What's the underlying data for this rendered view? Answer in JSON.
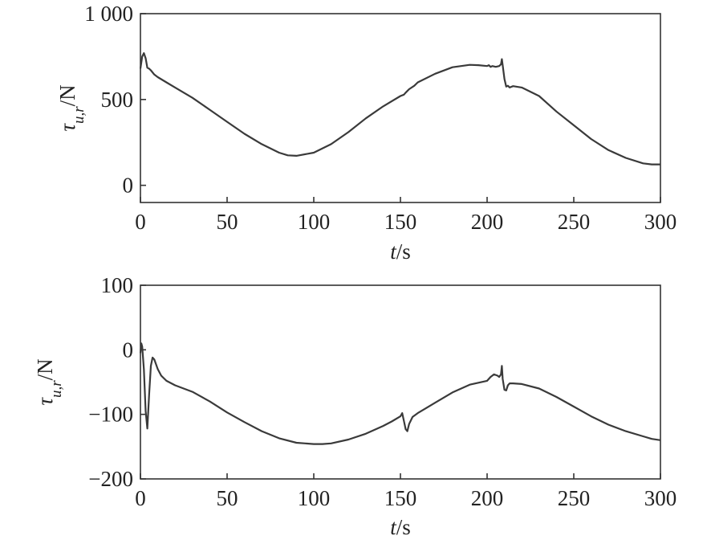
{
  "chart_data": [
    {
      "type": "line",
      "xlabel": {
        "var": "t",
        "unit": "/s"
      },
      "ylabel": {
        "var": "τ",
        "sub": "u,r",
        "unit": "/N"
      },
      "xlim": [
        0,
        300
      ],
      "ylim": [
        -100,
        1000
      ],
      "xticks": [
        0,
        50,
        100,
        150,
        200,
        250,
        300
      ],
      "xtick_labels": [
        "0",
        "50",
        "100",
        "150",
        "200",
        "250",
        "300"
      ],
      "yticks": [
        0,
        500,
        1000
      ],
      "ytick_labels": [
        "0",
        "500",
        "1 000"
      ],
      "grid": false,
      "series": [
        {
          "x": [
            0,
            1,
            2,
            3,
            4,
            5,
            6,
            8,
            10,
            15,
            20,
            30,
            40,
            50,
            60,
            70,
            80,
            85,
            90,
            100,
            110,
            120,
            130,
            140,
            150,
            152,
            153,
            155,
            158,
            160,
            170,
            180,
            190,
            195,
            200,
            201,
            202,
            203,
            205,
            207,
            208,
            208.5,
            209,
            210,
            211,
            212,
            213,
            215,
            220,
            230,
            240,
            250,
            260,
            270,
            280,
            290,
            295,
            300
          ],
          "y": [
            680,
            750,
            770,
            740,
            685,
            680,
            670,
            645,
            630,
            600,
            570,
            510,
            440,
            370,
            300,
            240,
            190,
            175,
            172,
            190,
            240,
            310,
            390,
            460,
            520,
            528,
            540,
            560,
            580,
            600,
            650,
            688,
            702,
            700,
            695,
            700,
            690,
            695,
            690,
            695,
            705,
            735,
            700,
            620,
            575,
            580,
            570,
            578,
            570,
            520,
            430,
            350,
            270,
            205,
            160,
            128,
            122,
            122
          ]
        }
      ]
    },
    {
      "type": "line",
      "xlabel": {
        "var": "t",
        "unit": "/s"
      },
      "ylabel": {
        "var": "τ",
        "sub": "u,r",
        "unit": "/N"
      },
      "xlim": [
        0,
        300
      ],
      "ylim": [
        -200,
        100
      ],
      "xticks": [
        0,
        50,
        100,
        150,
        200,
        250,
        300
      ],
      "xtick_labels": [
        "0",
        "50",
        "100",
        "150",
        "200",
        "250",
        "300"
      ],
      "yticks": [
        -200,
        -100,
        0,
        100
      ],
      "ytick_labels": [
        "−200",
        "−100",
        "0",
        "100"
      ],
      "grid": false,
      "series": [
        {
          "x": [
            0,
            0.5,
            1,
            2,
            3,
            4,
            5,
            6,
            7,
            8,
            10,
            12,
            15,
            20,
            30,
            40,
            50,
            60,
            70,
            80,
            90,
            100,
            105,
            110,
            120,
            130,
            140,
            145,
            150,
            151,
            152,
            153,
            154,
            155,
            157,
            160,
            170,
            180,
            190,
            200,
            202,
            204,
            206,
            207,
            208,
            208.5,
            209,
            210,
            211,
            212,
            213,
            215,
            220,
            230,
            240,
            250,
            260,
            270,
            280,
            290,
            295,
            300
          ],
          "y": [
            -5,
            10,
            5,
            -30,
            -95,
            -122,
            -70,
            -25,
            -12,
            -15,
            -30,
            -40,
            -48,
            -55,
            -65,
            -80,
            -97,
            -112,
            -126,
            -137,
            -144,
            -146,
            -146,
            -145,
            -139,
            -130,
            -118,
            -111,
            -103,
            -98,
            -110,
            -123,
            -126,
            -115,
            -104,
            -98,
            -82,
            -66,
            -54,
            -48,
            -42,
            -38,
            -40,
            -42,
            -38,
            -25,
            -45,
            -62,
            -63,
            -55,
            -52,
            -52,
            -53,
            -60,
            -73,
            -88,
            -103,
            -116,
            -126,
            -134,
            -138,
            -140
          ]
        }
      ]
    }
  ]
}
